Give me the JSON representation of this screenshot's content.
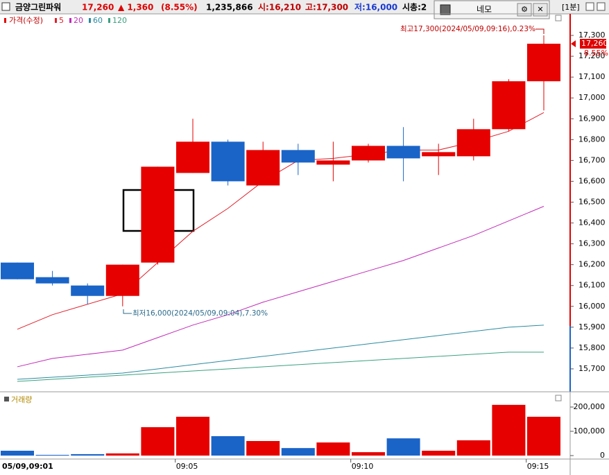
{
  "header": {
    "name": "금양그린파워",
    "price": "17,260",
    "change": "▲ 1,360",
    "change_pct": "(8.55%)",
    "volume": "1,235,866",
    "open": "시:16,210",
    "high": "고:17,300",
    "low": "저:16,000",
    "cap": "시총:2",
    "interval": "[1분]"
  },
  "window": {
    "title": "네모"
  },
  "chart_data": [
    {
      "type": "candlestick",
      "title": "가격(수정)",
      "up_color": "#e60000",
      "down_color": "#1a64c8",
      "series": [
        {
          "name": "가격(수정)",
          "open": [
            16210,
            16140,
            16100,
            16050,
            16210,
            16640,
            16790,
            16580,
            16750,
            16680,
            16700,
            16770,
            16720,
            16720,
            16850,
            17080
          ],
          "high": [
            16210,
            16170,
            16110,
            16200,
            16670,
            16900,
            16800,
            16790,
            16780,
            16790,
            16780,
            16860,
            16780,
            16900,
            17090,
            17300
          ],
          "low": [
            16130,
            16100,
            16010,
            16000,
            16200,
            16640,
            16580,
            16580,
            16630,
            16600,
            16690,
            16600,
            16630,
            16700,
            16840,
            16940
          ],
          "close": [
            16130,
            16110,
            16050,
            16200,
            16670,
            16790,
            16600,
            16750,
            16690,
            16700,
            16770,
            16710,
            16740,
            16850,
            17080,
            17260
          ]
        }
      ],
      "lines": [
        {
          "name": "5",
          "color": "#e0202a",
          "values": [
            15890,
            15960,
            16010,
            16060,
            16210,
            16360,
            16470,
            16600,
            16700,
            16710,
            16730,
            16750,
            16750,
            16790,
            16840,
            16930
          ]
        },
        {
          "name": "20",
          "color": "#c02ab8",
          "values": [
            15710,
            15750,
            15770,
            15790,
            15850,
            15910,
            15960,
            16020,
            16070,
            16120,
            16170,
            16220,
            16280,
            16340,
            16410,
            16480
          ]
        },
        {
          "name": "60",
          "color": "#2a8aa0",
          "values": [
            15650,
            15660,
            15670,
            15680,
            15700,
            15720,
            15740,
            15760,
            15780,
            15800,
            15820,
            15840,
            15860,
            15880,
            15900,
            15910
          ]
        },
        {
          "name": "120",
          "color": "#3aa080",
          "values": [
            15640,
            15650,
            15660,
            15670,
            15680,
            15690,
            15700,
            15710,
            15720,
            15730,
            15740,
            15750,
            15760,
            15770,
            15780,
            15780
          ]
        }
      ],
      "ylim": [
        15600,
        17400
      ],
      "yticks": [
        {
          "value": 15700,
          "label": "15,700"
        },
        {
          "value": 15800,
          "label": "15,800"
        },
        {
          "value": 15900,
          "label": "15,900"
        },
        {
          "value": 16000,
          "label": "16,000"
        },
        {
          "value": 16100,
          "label": "16,100"
        },
        {
          "value": 16200,
          "label": "16,200"
        },
        {
          "value": 16300,
          "label": "16,300"
        },
        {
          "value": 16400,
          "label": "16,400"
        },
        {
          "value": 16500,
          "label": "16,500"
        },
        {
          "value": 16600,
          "label": "16,600"
        },
        {
          "value": 16700,
          "label": "16,700"
        },
        {
          "value": 16800,
          "label": "16,800"
        },
        {
          "value": 16900,
          "label": "16,900"
        },
        {
          "value": 17000,
          "label": "17,000"
        },
        {
          "value": 17100,
          "label": "17,100"
        },
        {
          "value": 17200,
          "label": "17,200"
        },
        {
          "value": 17300,
          "label": "17,300"
        }
      ],
      "last": {
        "value": 17260,
        "label": "17,260"
      },
      "last_pct": "8.55%",
      "annotations": [
        "최고17,300(2024/05/09,09:16),0.23%",
        "최저16,000(2024/05/09,09:04),7.30%"
      ],
      "grid": false
    },
    {
      "type": "bar",
      "title": "거래량",
      "categories": [
        "05/09,09:01",
        null,
        null,
        null,
        "09:05",
        null,
        null,
        null,
        null,
        "09:10",
        null,
        null,
        null,
        null,
        "09:15",
        null
      ],
      "values": [
        20000,
        3000,
        6000,
        9000,
        117000,
        160000,
        80000,
        60000,
        31000,
        54000,
        14000,
        71000,
        20000,
        63000,
        209000,
        160000
      ],
      "colors": [
        "#1a64c8",
        "#1a64c8",
        "#1a64c8",
        "#e60000",
        "#e60000",
        "#e60000",
        "#1a64c8",
        "#e60000",
        "#1a64c8",
        "#e60000",
        "#e60000",
        "#1a64c8",
        "#e60000",
        "#e60000",
        "#e60000",
        "#e60000"
      ],
      "ylim": [
        0,
        230000
      ],
      "yticks": [
        0,
        {
          "value": 100000,
          "label": "100,000"
        },
        {
          "value": 200000,
          "label": "200,000"
        }
      ]
    }
  ]
}
